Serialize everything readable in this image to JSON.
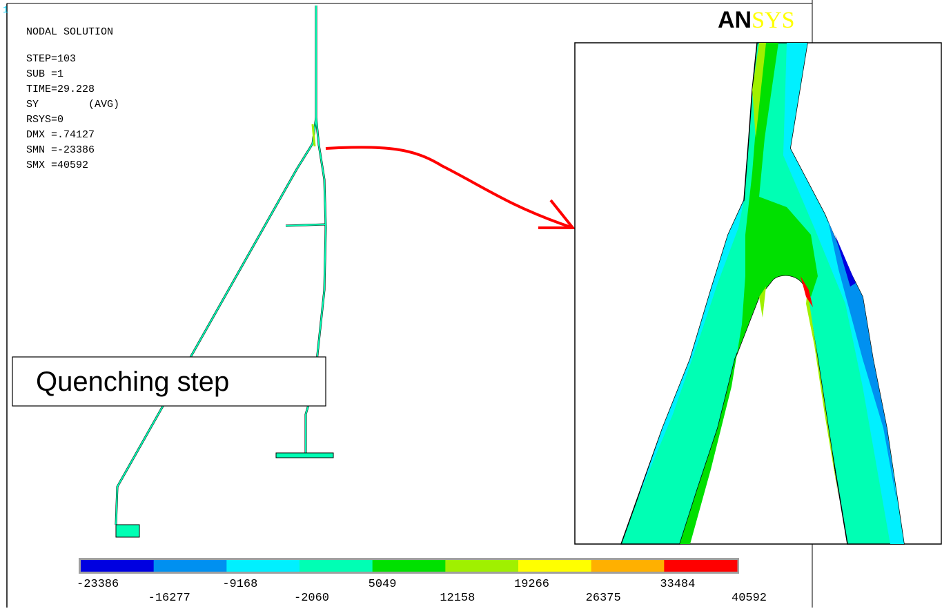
{
  "corner_label": "1",
  "info": {
    "title": "NODAL SOLUTION",
    "lines": [
      "STEP=103",
      "SUB =1",
      "TIME=29.228",
      "SY        (AVG)",
      "RSYS=0",
      "DMX =.74127",
      "SMN =-23386",
      "SMX =40592"
    ]
  },
  "logo": {
    "prefix": "AN",
    "suffix": "SYS"
  },
  "callout": "Quenching step",
  "legend": {
    "colors": [
      "#0000e0",
      "#0090f0",
      "#00f0ff",
      "#00ffb4",
      "#00e000",
      "#a0f000",
      "#ffff00",
      "#ffb000",
      "#ff0000"
    ],
    "labels": [
      -23386,
      -16277,
      -9168,
      -2060,
      5049,
      12158,
      19266,
      26375,
      33484,
      40592
    ]
  }
}
